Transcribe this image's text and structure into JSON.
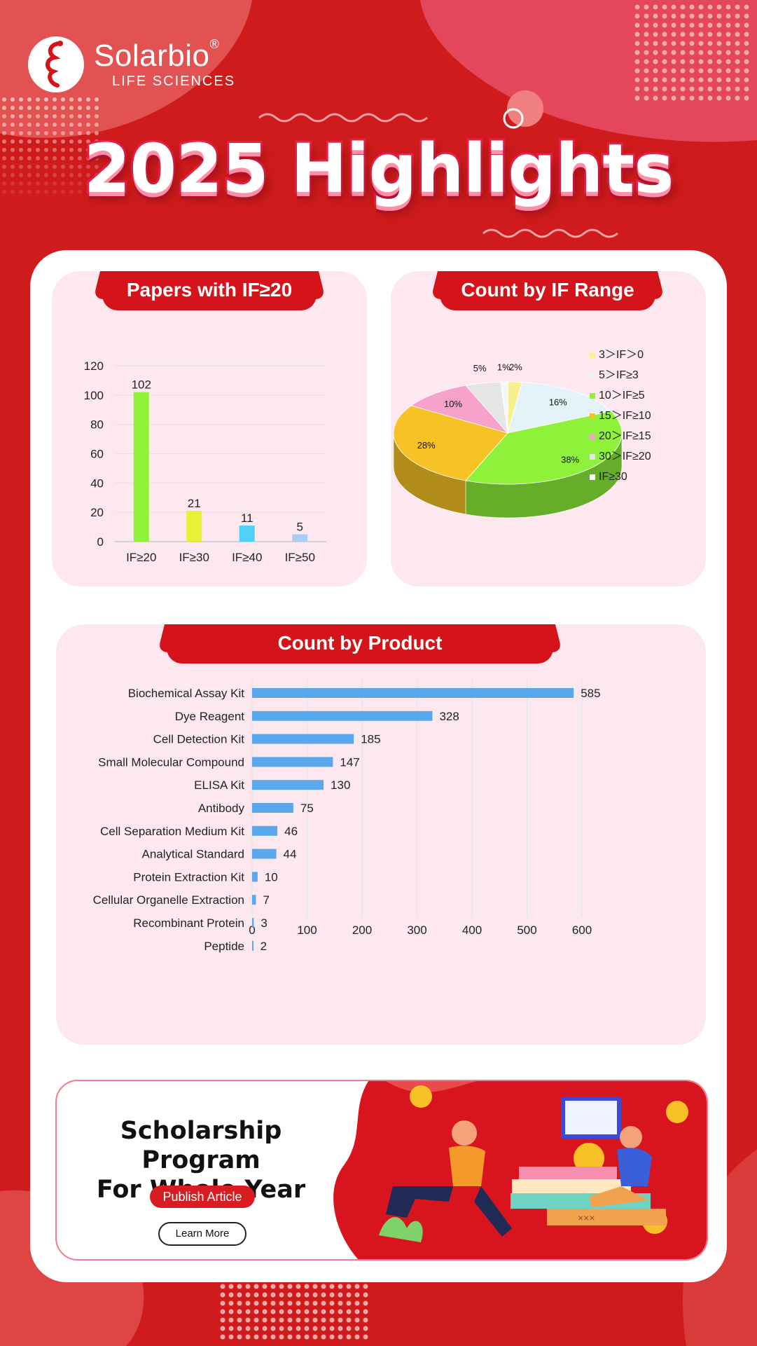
{
  "brand": {
    "name": "Solarbio",
    "registered": "®",
    "subtitle": "LIFE SCIENCES"
  },
  "page_title": "2025 Highlights",
  "colors": {
    "background": "#cf1b1b",
    "accent_red": "#d4141a",
    "panel_pink": "#fde8f0",
    "bar_blue": "#5aa8ec"
  },
  "panels": {
    "if_papers_title": "Papers with IF≥20",
    "if_range_title": "Count by IF Range",
    "product_title": "Count by Product"
  },
  "chart_data": [
    {
      "type": "bar",
      "title": "Papers with IF≥20",
      "categories": [
        "IF≥20",
        "IF≥30",
        "IF≥40",
        "IF≥50"
      ],
      "values": [
        102,
        21,
        11,
        5
      ],
      "colors": [
        "#8ef23b",
        "#e6f233",
        "#4fd2f6",
        "#a9cdf5"
      ],
      "ylim": [
        0,
        120
      ],
      "yticks": [
        0,
        20,
        40,
        60,
        80,
        100,
        120
      ],
      "grid": true,
      "data_labels": true
    },
    {
      "type": "pie",
      "title": "Count by IF Range",
      "labels": [
        "3＞IF＞0",
        "5＞IF≥3",
        "10＞IF≥5",
        "15＞IF≥10",
        "20＞IF≥15",
        "30＞IF≥20",
        "IF≥30"
      ],
      "values": [
        2,
        16,
        38,
        28,
        10,
        5,
        1
      ],
      "value_labels": [
        "2%",
        "16%",
        "38%",
        "28%",
        "10%",
        "5%",
        "1%"
      ],
      "colors": [
        "#f6f08d",
        "#e4f3fa",
        "#8ef23b",
        "#f6c226",
        "#f6a2cb",
        "#e5e5e5",
        "#f4f7fb"
      ],
      "legend": "right",
      "style": "3d"
    },
    {
      "type": "bar",
      "orientation": "horizontal",
      "title": "Count by Product",
      "categories": [
        "Biochemical Assay Kit",
        "Dye Reagent",
        "Cell Detection Kit",
        "Small Molecular Compound",
        "ELISA Kit",
        "Antibody",
        "Cell Separation Medium Kit",
        "Analytical Standard",
        "Protein Extraction Kit",
        "Cellular Organelle Extraction",
        "Recombinant Protein",
        "Peptide"
      ],
      "values": [
        585,
        328,
        185,
        147,
        130,
        75,
        46,
        44,
        10,
        7,
        3,
        2
      ],
      "xlim": [
        0,
        600
      ],
      "xticks": [
        0,
        100,
        200,
        300,
        400,
        500,
        600
      ],
      "grid": true,
      "data_labels": true
    }
  ],
  "banner": {
    "title": "Scholarship Program\nFor Whole Year",
    "publish_label": "Publish Article",
    "learn_label": "Learn More",
    "illustration_text": "×××"
  }
}
